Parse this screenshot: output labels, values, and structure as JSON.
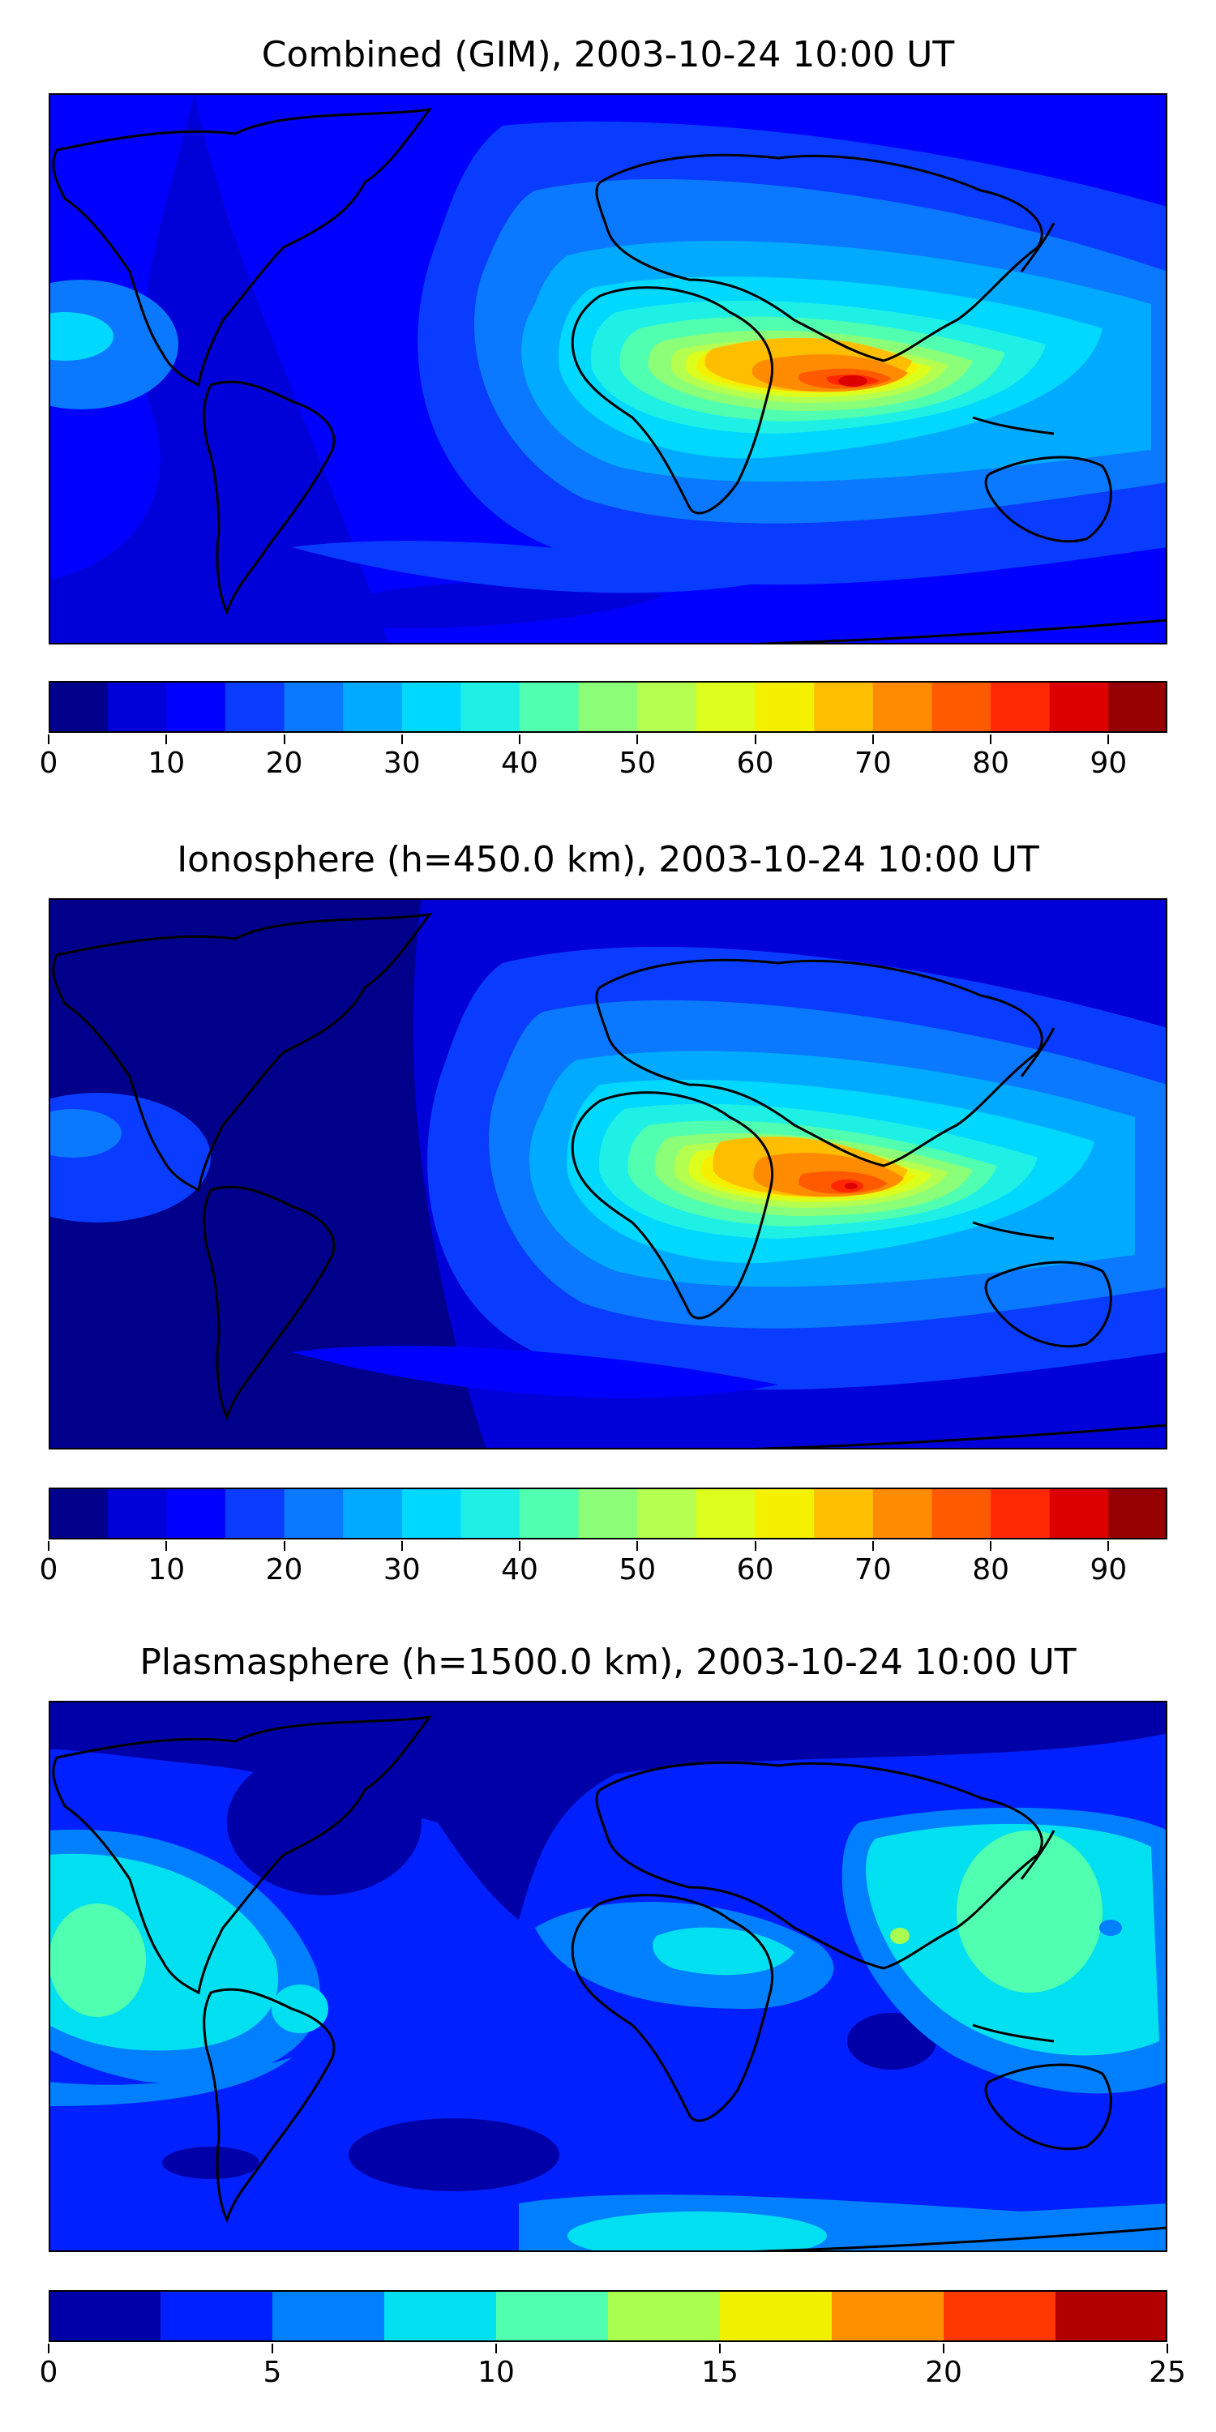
{
  "panels": [
    {
      "title": "Combined (GIM), 2003-10-24 10:00 UT",
      "colorbar": {
        "min": 0,
        "max": 95,
        "ticks": [
          "0",
          "10",
          "20",
          "30",
          "40",
          "50",
          "60",
          "70",
          "80",
          "90"
        ],
        "levels": 19,
        "colors": [
          "#00008b",
          "#0000d8",
          "#0000ff",
          "#0a3cff",
          "#0a78ff",
          "#00aaff",
          "#00d8ff",
          "#1ef0e6",
          "#50ffb0",
          "#8cff78",
          "#b4ff50",
          "#dcff1e",
          "#f5f000",
          "#ffbe00",
          "#ff8c00",
          "#ff5a00",
          "#ff2800",
          "#dc0000",
          "#960000"
        ]
      }
    },
    {
      "title": "Ionosphere  (h=450.0 km), 2003-10-24 10:00 UT",
      "colorbar": {
        "min": 0,
        "max": 95,
        "ticks": [
          "0",
          "10",
          "20",
          "30",
          "40",
          "50",
          "60",
          "70",
          "80",
          "90"
        ],
        "levels": 19,
        "colors": [
          "#00008b",
          "#0000d8",
          "#0000ff",
          "#0a3cff",
          "#0a78ff",
          "#00aaff",
          "#00d8ff",
          "#1ef0e6",
          "#50ffb0",
          "#8cff78",
          "#b4ff50",
          "#dcff1e",
          "#f5f000",
          "#ffbe00",
          "#ff8c00",
          "#ff5a00",
          "#ff2800",
          "#dc0000",
          "#960000"
        ]
      }
    },
    {
      "title": "Plasmasphere (h=1500.0 km), 2003-10-24 10:00 UT",
      "colorbar": {
        "min": 0,
        "max": 25,
        "ticks": [
          "0",
          "5",
          "10",
          "15",
          "20",
          "25"
        ],
        "levels": 10,
        "colors": [
          "#0000a8",
          "#0020ff",
          "#0080ff",
          "#00e0f0",
          "#50ffb0",
          "#a8ff50",
          "#f0f000",
          "#ff9000",
          "#ff3800",
          "#b00000"
        ]
      }
    }
  ]
}
